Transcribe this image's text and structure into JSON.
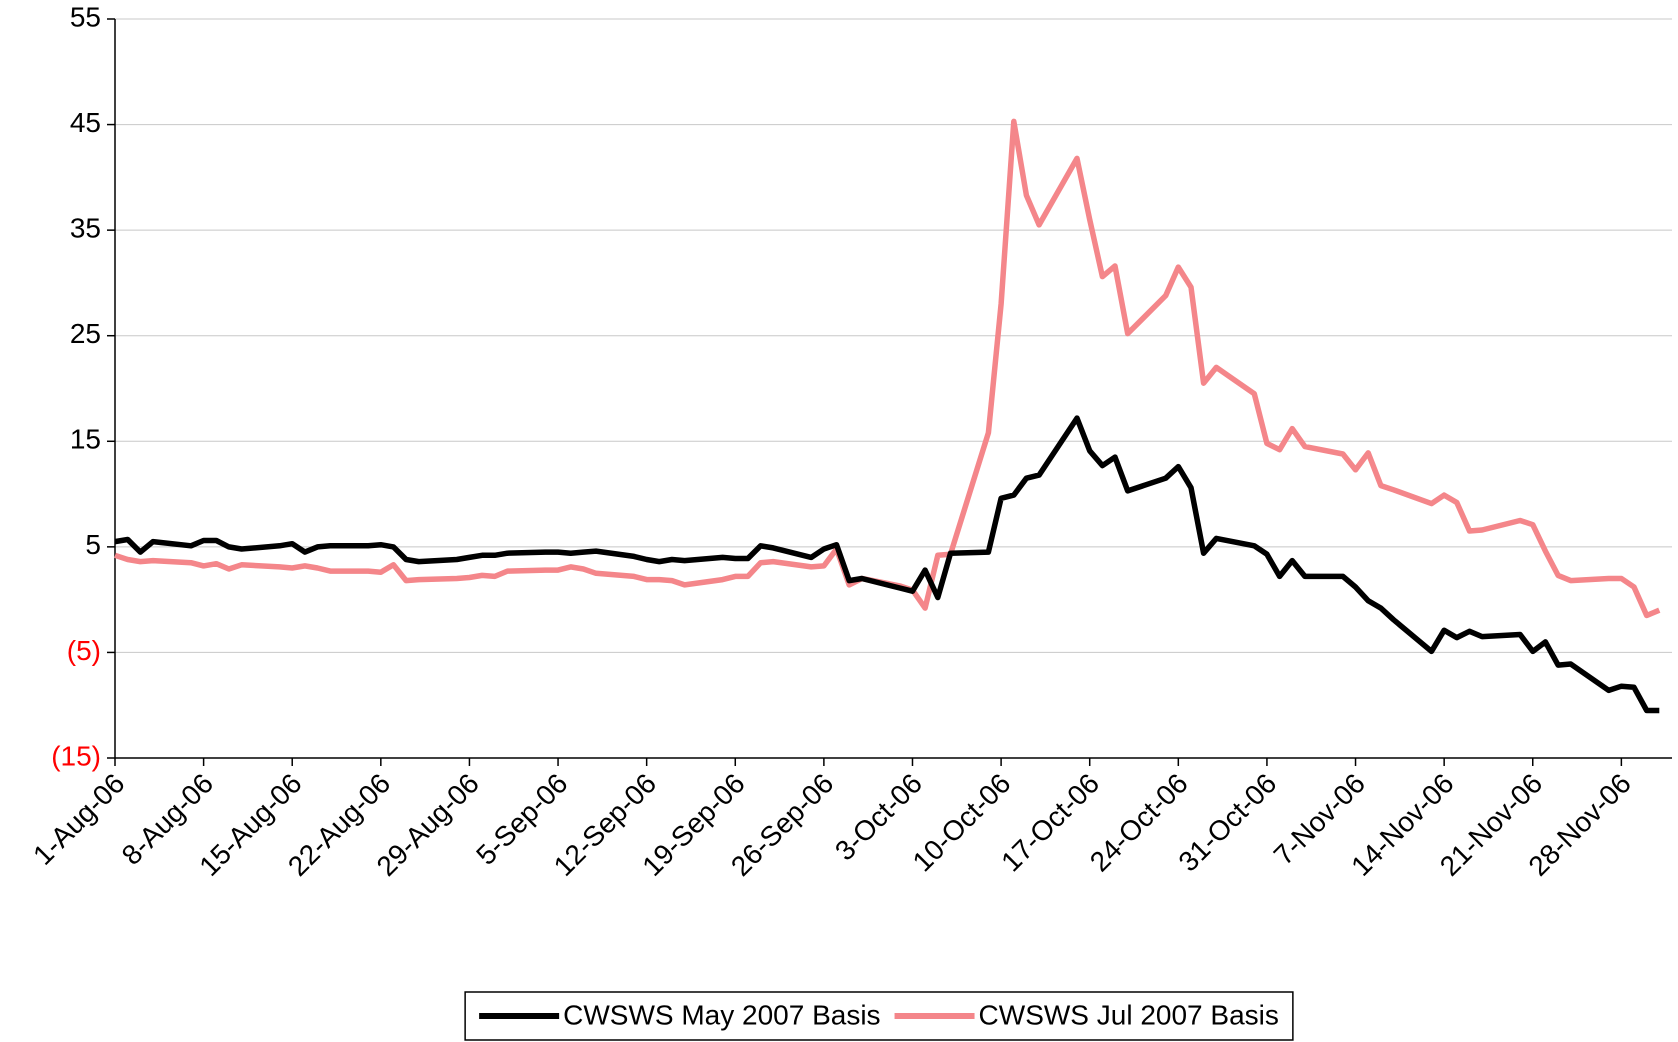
{
  "chart_data": {
    "type": "line",
    "x": [
      "2006-08-01",
      "2006-08-02",
      "2006-08-03",
      "2006-08-04",
      "2006-08-07",
      "2006-08-08",
      "2006-08-09",
      "2006-08-10",
      "2006-08-11",
      "2006-08-14",
      "2006-08-15",
      "2006-08-16",
      "2006-08-17",
      "2006-08-18",
      "2006-08-21",
      "2006-08-22",
      "2006-08-23",
      "2006-08-24",
      "2006-08-25",
      "2006-08-28",
      "2006-08-29",
      "2006-08-30",
      "2006-08-31",
      "2006-09-01",
      "2006-09-04",
      "2006-09-05",
      "2006-09-06",
      "2006-09-07",
      "2006-09-08",
      "2006-09-11",
      "2006-09-12",
      "2006-09-13",
      "2006-09-14",
      "2006-09-15",
      "2006-09-18",
      "2006-09-19",
      "2006-09-20",
      "2006-09-21",
      "2006-09-22",
      "2006-09-25",
      "2006-09-26",
      "2006-09-27",
      "2006-09-28",
      "2006-09-29",
      "2006-10-02",
      "2006-10-03",
      "2006-10-04",
      "2006-10-05",
      "2006-10-06",
      "2006-10-09",
      "2006-10-10",
      "2006-10-11",
      "2006-10-12",
      "2006-10-13",
      "2006-10-16",
      "2006-10-17",
      "2006-10-18",
      "2006-10-19",
      "2006-10-20",
      "2006-10-23",
      "2006-10-24",
      "2006-10-25",
      "2006-10-26",
      "2006-10-27",
      "2006-10-30",
      "2006-10-31",
      "2006-11-01",
      "2006-11-02",
      "2006-11-03",
      "2006-11-06",
      "2006-11-07",
      "2006-11-08",
      "2006-11-09",
      "2006-11-10",
      "2006-11-13",
      "2006-11-14",
      "2006-11-15",
      "2006-11-16",
      "2006-11-17",
      "2006-11-20",
      "2006-11-21",
      "2006-11-22",
      "2006-11-23",
      "2006-11-24",
      "2006-11-27",
      "2006-11-28",
      "2006-11-29",
      "2006-11-30",
      "2006-12-01"
    ],
    "series": [
      {
        "name": "CWSWS May 2007 Basis",
        "color": "#000000",
        "values": [
          5.5,
          5.7,
          4.5,
          5.5,
          5.1,
          5.6,
          5.6,
          5.0,
          4.8,
          5.1,
          5.3,
          4.5,
          5.0,
          5.1,
          5.1,
          5.2,
          5.0,
          3.8,
          3.6,
          3.8,
          4.0,
          4.2,
          4.2,
          4.4,
          4.5,
          4.5,
          4.4,
          4.5,
          4.6,
          4.1,
          3.8,
          3.6,
          3.8,
          3.7,
          4.0,
          3.9,
          3.9,
          5.1,
          4.9,
          4.0,
          4.8,
          5.2,
          1.8,
          2.0,
          1.1,
          0.8,
          2.8,
          0.2,
          4.4,
          4.5,
          9.6,
          9.9,
          11.5,
          11.8,
          17.2,
          14.1,
          12.7,
          13.5,
          10.3,
          11.5,
          12.6,
          10.6,
          4.4,
          5.8,
          5.1,
          4.3,
          2.2,
          3.7,
          2.2,
          2.2,
          1.2,
          -0.1,
          -0.8,
          -1.9,
          -4.9,
          -2.9,
          -3.6,
          -3.0,
          -3.5,
          -3.3,
          -4.9,
          -4.0,
          -6.2,
          -6.1,
          -8.6,
          -8.2,
          -8.3,
          -10.5,
          -10.5
        ]
      },
      {
        "name": "CWSWS Jul 2007 Basis",
        "color": "#f4868a",
        "values": [
          4.2,
          3.8,
          3.6,
          3.7,
          3.5,
          3.2,
          3.4,
          2.9,
          3.3,
          3.1,
          3.0,
          3.2,
          3.0,
          2.7,
          2.7,
          2.6,
          3.3,
          1.8,
          1.9,
          2.0,
          2.1,
          2.3,
          2.2,
          2.7,
          2.8,
          2.8,
          3.1,
          2.9,
          2.5,
          2.2,
          1.9,
          1.9,
          1.8,
          1.4,
          1.9,
          2.2,
          2.2,
          3.5,
          3.6,
          3.1,
          3.2,
          4.8,
          1.4,
          2.0,
          1.3,
          0.9,
          -0.8,
          4.2,
          4.3,
          15.8,
          28.0,
          45.3,
          38.3,
          35.5,
          41.8,
          36.0,
          30.6,
          31.6,
          25.2,
          28.8,
          31.5,
          29.6,
          20.5,
          22.0,
          19.5,
          14.8,
          14.2,
          16.2,
          14.5,
          13.8,
          12.3,
          13.9,
          10.8,
          10.4,
          9.1,
          9.9,
          9.2,
          6.5,
          6.6,
          7.5,
          7.1,
          4.6,
          2.3,
          1.8,
          2.0,
          2.0,
          1.2,
          -1.5,
          -1.0
        ]
      }
    ],
    "xlim": [
      "2006-08-01",
      "2006-12-02"
    ],
    "xticks": [
      {
        "value": "2006-08-01",
        "label": "1-Aug-06"
      },
      {
        "value": "2006-08-08",
        "label": "8-Aug-06"
      },
      {
        "value": "2006-08-15",
        "label": "15-Aug-06"
      },
      {
        "value": "2006-08-22",
        "label": "22-Aug-06"
      },
      {
        "value": "2006-08-29",
        "label": "29-Aug-06"
      },
      {
        "value": "2006-09-05",
        "label": "5-Sep-06"
      },
      {
        "value": "2006-09-12",
        "label": "12-Sep-06"
      },
      {
        "value": "2006-09-19",
        "label": "19-Sep-06"
      },
      {
        "value": "2006-09-26",
        "label": "26-Sep-06"
      },
      {
        "value": "2006-10-03",
        "label": "3-Oct-06"
      },
      {
        "value": "2006-10-10",
        "label": "10-Oct-06"
      },
      {
        "value": "2006-10-17",
        "label": "17-Oct-06"
      },
      {
        "value": "2006-10-24",
        "label": "24-Oct-06"
      },
      {
        "value": "2006-10-31",
        "label": "31-Oct-06"
      },
      {
        "value": "2006-11-07",
        "label": "7-Nov-06"
      },
      {
        "value": "2006-11-14",
        "label": "14-Nov-06"
      },
      {
        "value": "2006-11-21",
        "label": "21-Nov-06"
      },
      {
        "value": "2006-11-28",
        "label": "28-Nov-06"
      }
    ],
    "ylim": [
      -15,
      55
    ],
    "yticks": [
      {
        "value": -15,
        "label": "(15)"
      },
      {
        "value": -5,
        "label": "(5)"
      },
      5,
      15,
      25,
      35,
      45,
      55
    ],
    "negative_tick_label_color": "#ff0000",
    "grid": true,
    "legend": "bottom"
  }
}
